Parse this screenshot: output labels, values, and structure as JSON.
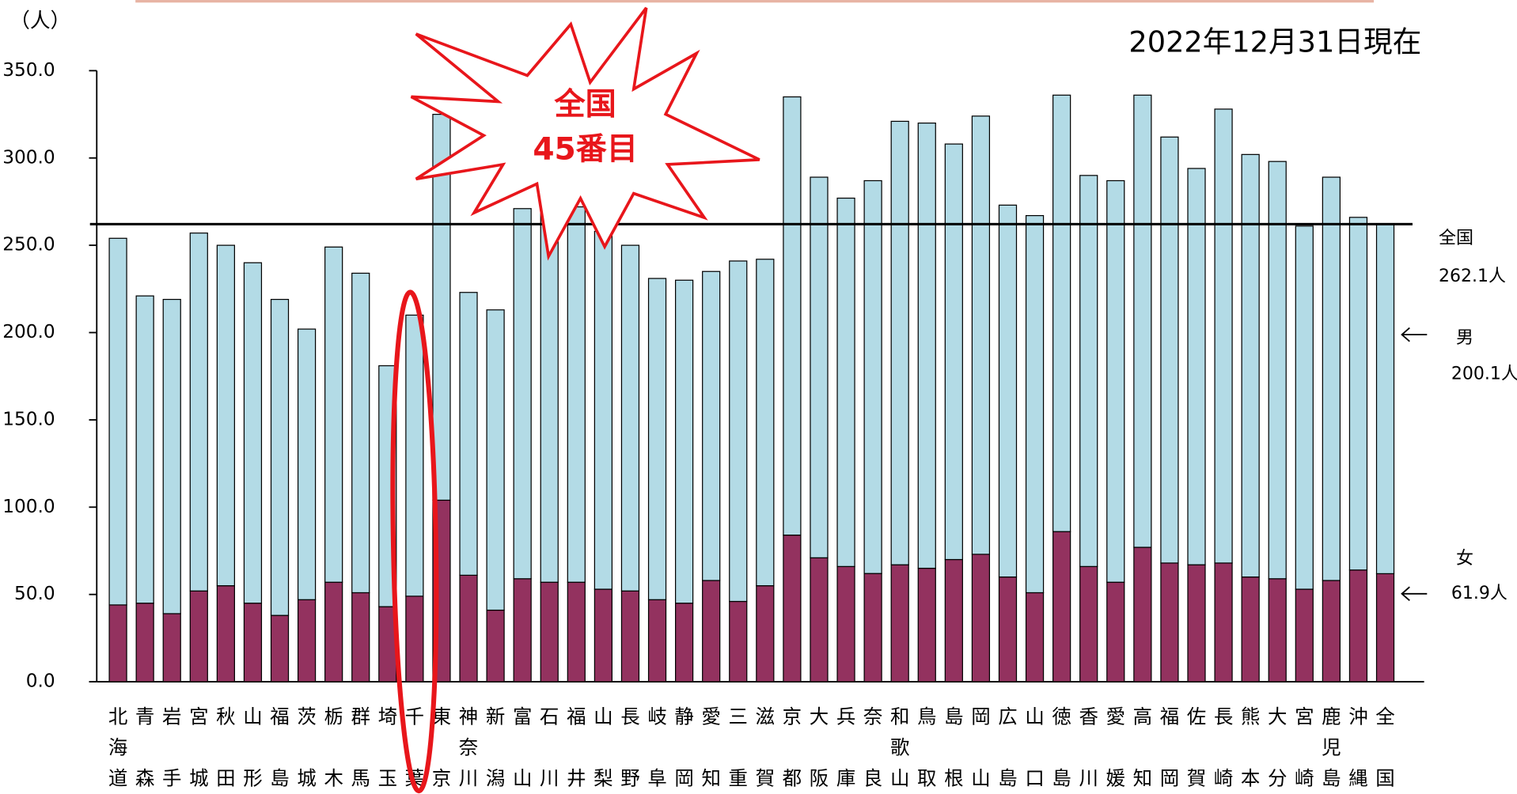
{
  "chart_data": {
    "type": "bar",
    "stacked": true,
    "unit_label": "（人）",
    "date_note": "2022年12月31日現在",
    "highlight": {
      "index": 11,
      "text": [
        "全国",
        "45番目"
      ]
    },
    "reference_line": {
      "value": 262.1,
      "label": "全国",
      "value_label": "262.1人",
      "color": "#000000"
    },
    "categories": [
      "北海道",
      "青森",
      "岩手",
      "宮城",
      "秋田",
      "山形",
      "福島",
      "茨城",
      "栃木",
      "群馬",
      "埼玉",
      "千葉",
      "東京",
      "神奈川",
      "新潟",
      "富山",
      "石川",
      "福井",
      "山梨",
      "長野",
      "岐阜",
      "静岡",
      "愛知",
      "三重",
      "滋賀",
      "京都",
      "大阪",
      "兵庫",
      "奈良",
      "和歌山",
      "鳥取",
      "島根",
      "岡山",
      "広島",
      "山口",
      "徳島",
      "香川",
      "愛媛",
      "高知",
      "福岡",
      "佐賀",
      "長崎",
      "熊本",
      "大分",
      "宮崎",
      "鹿児島",
      "沖縄",
      "全国"
    ],
    "series": [
      {
        "name": "女",
        "color": "#93325f",
        "side_label": "61.9人",
        "values": [
          44,
          45,
          39,
          52,
          55,
          45,
          38,
          47,
          57,
          51,
          43,
          49,
          104,
          61,
          41,
          59,
          57,
          57,
          53,
          52,
          47,
          45,
          58,
          46,
          55,
          84,
          71,
          66,
          62,
          67,
          65,
          70,
          73,
          60,
          51,
          86,
          66,
          57,
          77,
          68,
          67,
          68,
          60,
          59,
          53,
          58,
          64,
          61.9
        ]
      },
      {
        "name": "男",
        "color": "#b3dbe6",
        "side_label": "200.1人",
        "values": [
          210,
          176,
          180,
          205,
          195,
          195,
          181,
          155,
          192,
          183,
          138,
          161,
          221,
          162,
          172,
          212,
          230,
          215,
          205,
          198,
          184,
          185,
          177,
          195,
          187,
          251,
          218,
          211,
          225,
          254,
          255,
          238,
          251,
          213,
          216,
          250,
          224,
          230,
          259,
          244,
          227,
          260,
          242,
          239,
          208,
          231,
          202,
          200.1
        ]
      }
    ],
    "ylim": [
      0,
      350
    ],
    "yticks": [
      {
        "value": 0,
        "label": "0.0"
      },
      {
        "value": 50,
        "label": "50.0"
      },
      {
        "value": 100,
        "label": "100.0"
      },
      {
        "value": 150,
        "label": "150.0"
      },
      {
        "value": 200,
        "label": "200.0"
      },
      {
        "value": 250,
        "label": "250.0"
      },
      {
        "value": 300,
        "label": "300.0"
      },
      {
        "value": 350,
        "label": "350.0"
      }
    ]
  }
}
